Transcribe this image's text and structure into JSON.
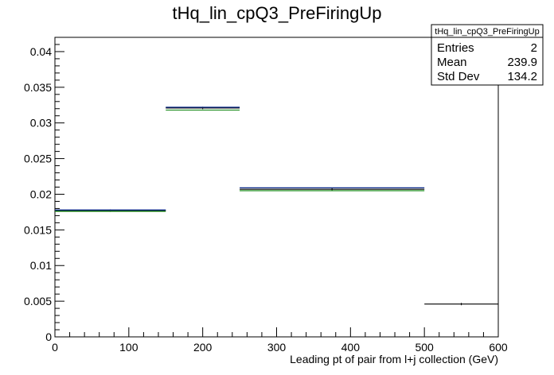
{
  "chart_data": {
    "type": "histogram",
    "title": "tHq_lin_cpQ3_PreFiringUp",
    "xlabel": "Leading pt of pair from l+j collection (GeV)",
    "ylabel": "",
    "xlim": [
      0,
      600
    ],
    "ylim": [
      0,
      0.042
    ],
    "x_ticks": [
      0,
      100,
      200,
      300,
      400,
      500,
      600
    ],
    "y_ticks": [
      0,
      0.005,
      0.01,
      0.015,
      0.02,
      0.025,
      0.03,
      0.035,
      0.04
    ],
    "y_tick_labels": [
      "0",
      "0.005",
      "0.01",
      "0.015",
      "0.02",
      "0.025",
      "0.03",
      "0.035",
      "0.04"
    ],
    "grid": false,
    "series": [
      {
        "color": "#000000",
        "bins": [
          {
            "x0": 0,
            "x1": 150,
            "y": 0.0177
          },
          {
            "x0": 150,
            "x1": 250,
            "y": 0.0321
          },
          {
            "x0": 250,
            "x1": 500,
            "y": 0.0207
          },
          {
            "x0": 500,
            "x1": 600,
            "y": 0.0046
          }
        ]
      },
      {
        "color": "#1a8c1a",
        "bins": [
          {
            "x0": 0,
            "x1": 150,
            "y": 0.0176
          },
          {
            "x0": 150,
            "x1": 250,
            "y": 0.0318
          },
          {
            "x0": 250,
            "x1": 500,
            "y": 0.0205
          }
        ]
      },
      {
        "color": "#0a2a8c",
        "bins": [
          {
            "x0": 0,
            "x1": 150,
            "y": 0.0178
          },
          {
            "x0": 150,
            "x1": 250,
            "y": 0.0322
          },
          {
            "x0": 250,
            "x1": 500,
            "y": 0.0209
          }
        ]
      }
    ],
    "stats_box": {
      "name": "tHq_lin_cpQ3_PreFiringUp",
      "placement": "top-right",
      "rows": [
        {
          "label": "Entries",
          "value": "2"
        },
        {
          "label": "Mean",
          "value": "239.9"
        },
        {
          "label": "Std Dev",
          "value": "134.2"
        }
      ]
    }
  }
}
